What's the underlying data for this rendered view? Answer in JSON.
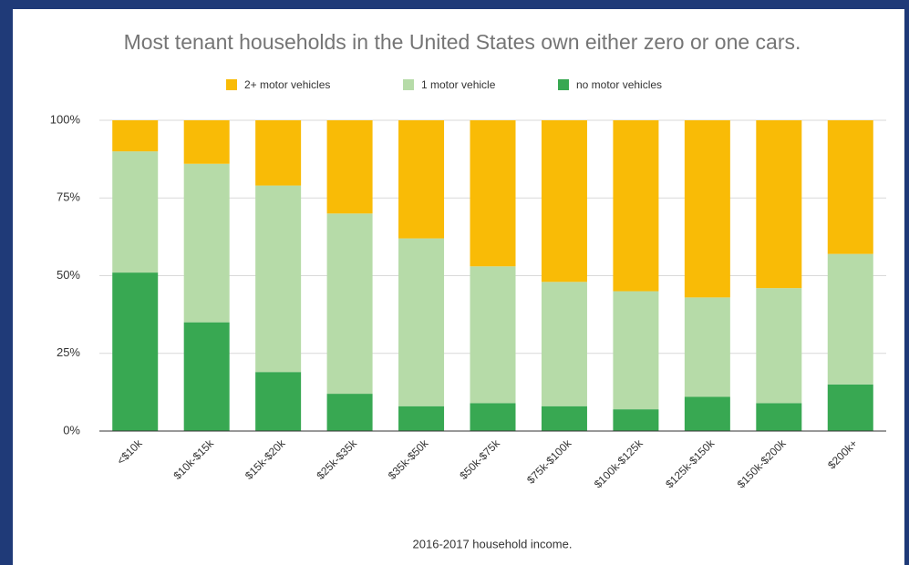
{
  "chart_data": {
    "type": "stacked_bar",
    "title": "Most tenant households in the United States own either zero or one cars.",
    "x_label": "2016-2017 household income.",
    "categories": [
      "<$10k",
      "$10k-$15k",
      "$15k-$20k",
      "$25k-$35k",
      "$35k-$50k",
      "$50k-$75k",
      "$75k-$100k",
      "$100k-$125k",
      "$125k-$150k",
      "$150k-$200k",
      "$200k+"
    ],
    "series": [
      {
        "name": "no motor vehicles",
        "color": "#38a852",
        "values": [
          51,
          35,
          19,
          12,
          8,
          9,
          8,
          7,
          11,
          9,
          15
        ]
      },
      {
        "name": "1 motor vehicle",
        "color": "#b6dba8",
        "values": [
          39,
          51,
          60,
          58,
          54,
          44,
          40,
          38,
          32,
          37,
          42
        ]
      },
      {
        "name": "2+ motor vehicles",
        "color": "#f9bb06",
        "values": [
          10,
          14,
          21,
          30,
          38,
          47,
          52,
          55,
          57,
          54,
          43
        ]
      }
    ],
    "ylim": [
      0,
      100
    ],
    "yticks": [
      {
        "value": 0,
        "label": "0%"
      },
      {
        "value": 25,
        "label": "25%"
      },
      {
        "value": 50,
        "label": "50%"
      },
      {
        "value": 75,
        "label": "75%"
      },
      {
        "value": 100,
        "label": "100%"
      }
    ],
    "grid": true
  }
}
